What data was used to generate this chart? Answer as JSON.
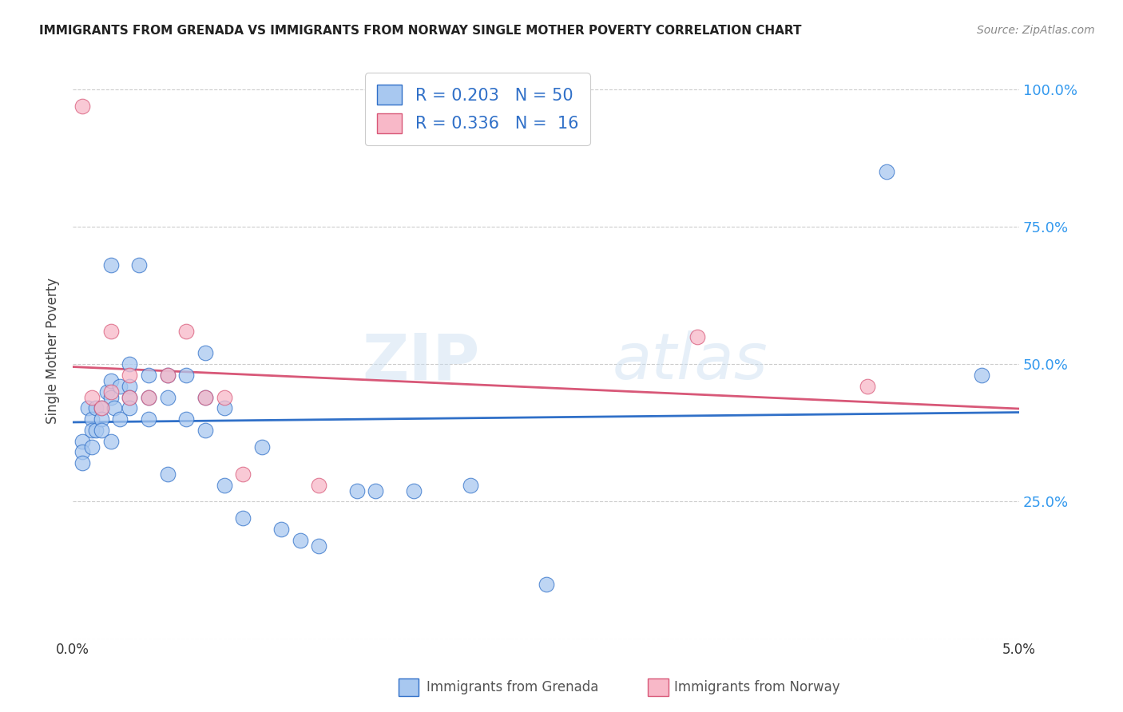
{
  "title": "IMMIGRANTS FROM GRENADA VS IMMIGRANTS FROM NORWAY SINGLE MOTHER POVERTY CORRELATION CHART",
  "source": "Source: ZipAtlas.com",
  "ylabel": "Single Mother Poverty",
  "ylabel_right_ticks": [
    "100.0%",
    "75.0%",
    "50.0%",
    "25.0%"
  ],
  "ylabel_right_vals": [
    1.0,
    0.75,
    0.5,
    0.25
  ],
  "xlim": [
    0.0,
    0.05
  ],
  "ylim": [
    0.0,
    1.05
  ],
  "r_grenada": 0.203,
  "n_grenada": 50,
  "r_norway": 0.336,
  "n_norway": 16,
  "color_grenada": "#a8c8f0",
  "color_norway": "#f8b8c8",
  "color_grenada_line": "#3070c8",
  "color_norway_line": "#d85878",
  "legend_text_color": "#3070c8",
  "background_color": "#ffffff",
  "grid_color": "#cccccc",
  "grenada_x": [
    0.0005,
    0.0005,
    0.0005,
    0.0008,
    0.001,
    0.001,
    0.001,
    0.0012,
    0.0012,
    0.0015,
    0.0015,
    0.0015,
    0.0018,
    0.002,
    0.002,
    0.002,
    0.002,
    0.0022,
    0.0025,
    0.0025,
    0.003,
    0.003,
    0.003,
    0.003,
    0.0035,
    0.004,
    0.004,
    0.004,
    0.005,
    0.005,
    0.005,
    0.006,
    0.006,
    0.007,
    0.007,
    0.007,
    0.008,
    0.008,
    0.009,
    0.01,
    0.011,
    0.012,
    0.013,
    0.015,
    0.016,
    0.018,
    0.021,
    0.025,
    0.043,
    0.048
  ],
  "grenada_y": [
    0.36,
    0.34,
    0.32,
    0.42,
    0.4,
    0.38,
    0.35,
    0.42,
    0.38,
    0.42,
    0.4,
    0.38,
    0.45,
    0.68,
    0.47,
    0.44,
    0.36,
    0.42,
    0.46,
    0.4,
    0.5,
    0.46,
    0.44,
    0.42,
    0.68,
    0.48,
    0.44,
    0.4,
    0.48,
    0.44,
    0.3,
    0.48,
    0.4,
    0.52,
    0.44,
    0.38,
    0.42,
    0.28,
    0.22,
    0.35,
    0.2,
    0.18,
    0.17,
    0.27,
    0.27,
    0.27,
    0.28,
    0.1,
    0.85,
    0.48
  ],
  "norway_x": [
    0.0005,
    0.001,
    0.0015,
    0.002,
    0.002,
    0.003,
    0.003,
    0.004,
    0.005,
    0.006,
    0.007,
    0.008,
    0.009,
    0.013,
    0.033,
    0.042
  ],
  "norway_y": [
    0.97,
    0.44,
    0.42,
    0.56,
    0.45,
    0.48,
    0.44,
    0.44,
    0.48,
    0.56,
    0.44,
    0.44,
    0.3,
    0.28,
    0.55,
    0.46
  ]
}
